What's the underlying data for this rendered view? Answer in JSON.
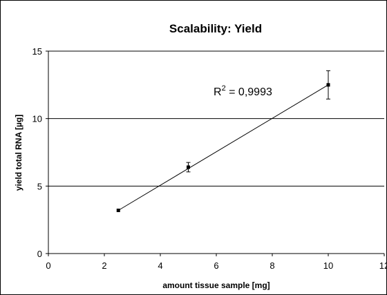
{
  "chart_data": {
    "type": "scatter",
    "title": "Scalability: Yield",
    "xlabel": "amount tissue sample [mg]",
    "ylabel": "yield total RNA [µg]",
    "xlim": [
      0,
      12
    ],
    "ylim": [
      0,
      15
    ],
    "x_ticks": [
      "0",
      "2",
      "4",
      "6",
      "8",
      "10",
      "12"
    ],
    "y_ticks": [
      "0",
      "5",
      "10",
      "15"
    ],
    "grid": "horizontal major gridlines",
    "legend": "none",
    "series": [
      {
        "x": [
          2.5,
          5,
          10
        ],
        "y": [
          3.2,
          6.4,
          12.5
        ],
        "error": [
          0,
          0.35,
          1.05
        ],
        "marker_color": "#000000"
      }
    ],
    "trendline": {
      "type": "linear",
      "from": [
        2.5,
        3.2
      ],
      "to": [
        10,
        12.5
      ]
    },
    "annotation": {
      "base": "R",
      "superscript": "2",
      "rest": " = 0,9993"
    }
  }
}
